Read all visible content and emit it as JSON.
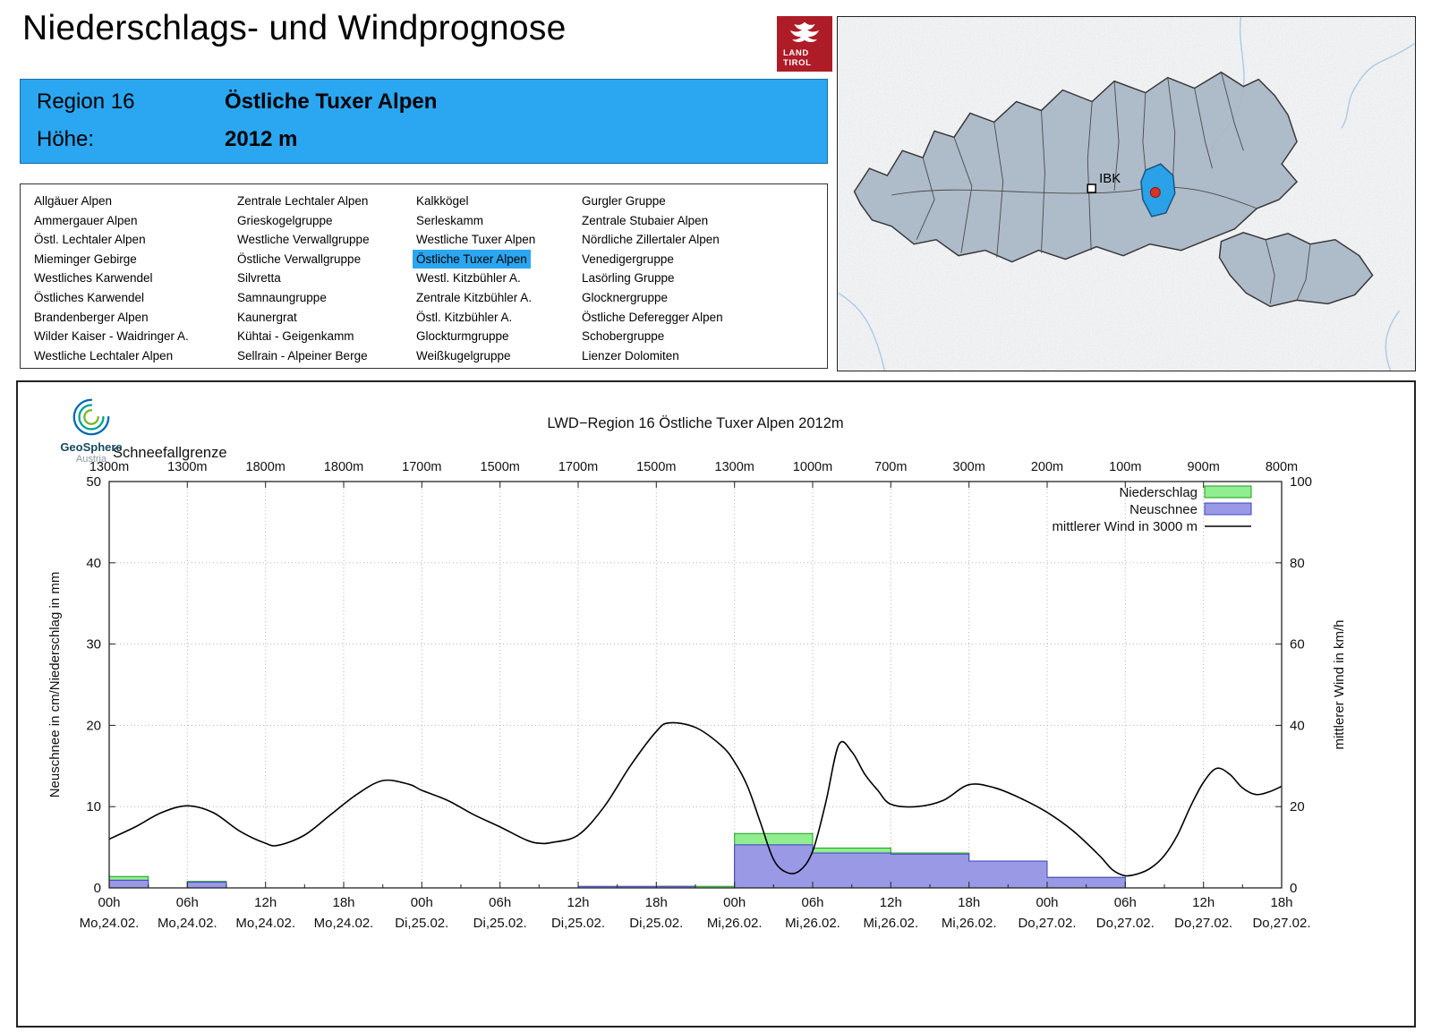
{
  "header": {
    "title": "Niederschlags- und Windprognose",
    "logo_line1": "LAND",
    "logo_line2": "TIROL"
  },
  "region_info": {
    "region_label": "Region 16",
    "region_name": "Östliche Tuxer Alpen",
    "altitude_label": "Höhe:",
    "altitude_value": "2012 m"
  },
  "region_list": {
    "selected": "Östliche Tuxer Alpen",
    "columns": [
      [
        "Allgäuer Alpen",
        "Ammergauer Alpen",
        "Östl. Lechtaler Alpen",
        "Mieminger Gebirge",
        "Westliches Karwendel",
        "Östliches Karwendel",
        "Brandenberger Alpen",
        "Wilder Kaiser - Waidringer A.",
        "Westliche Lechtaler Alpen"
      ],
      [
        "Zentrale Lechtaler Alpen",
        "Grieskogelgruppe",
        "Westliche Verwallgruppe",
        "Östliche Verwallgruppe",
        "Silvretta",
        "Samnaungruppe",
        "Kaunergrat",
        "Kühtai - Geigenkamm",
        "Sellrain - Alpeiner Berge"
      ],
      [
        "Kalkkögel",
        "Serleskamm",
        "Westliche Tuxer Alpen",
        "Östliche Tuxer Alpen",
        "Westl. Kitzbühler A.",
        "Zentrale Kitzbühler A.",
        "Östl. Kitzbühler A.",
        "Glockturmgruppe",
        "Weißkugelgruppe"
      ],
      [
        "Gurgler Gruppe",
        "Zentrale Stubaier Alpen",
        "Nördliche Zillertaler Alpen",
        "Venedigergruppe",
        "Lasörling Gruppe",
        "Glocknergruppe",
        "Östliche Deferegger Alpen",
        "Schobergruppe",
        "Lienzer Dolomiten"
      ]
    ]
  },
  "map": {
    "city_label": "IBK"
  },
  "geosphere": {
    "name": "GeoSphere",
    "sub": "Austria"
  },
  "colors": {
    "accent_blue": "#2ba6f0",
    "logo_red": "#ae1c28",
    "map_highlight": "#2ba2e8",
    "bar_precip": "#90ee90",
    "bar_precip_border": "#1e9e1e",
    "bar_snow": "#9999e6",
    "bar_snow_border": "#4040c0",
    "wind_line": "#000000"
  },
  "chart_data": {
    "type": "composite",
    "title": "LWD−Region 16 Östliche Tuxer Alpen 2012m",
    "snowline_label": "Schneefallgrenze",
    "snowline_values": [
      "1300m",
      "1300m",
      "1800m",
      "1800m",
      "1700m",
      "1500m",
      "1700m",
      "1500m",
      "1300m",
      "1000m",
      "700m",
      "300m",
      "200m",
      "100m",
      "900m",
      "800m"
    ],
    "ylabel_left": "Neuschnee in cm/Niederschlag in mm",
    "ylabel_right": "mittlerer Wind in km/h",
    "ylim_left": [
      0,
      50
    ],
    "ylim_right": [
      0,
      100
    ],
    "yticks_left": [
      0,
      10,
      20,
      30,
      40,
      50
    ],
    "yticks_right": [
      0,
      20,
      40,
      60,
      80,
      100
    ],
    "x_hours_total": 90,
    "x_ticks": [
      {
        "hour": "00h",
        "date": "Mo,24.02."
      },
      {
        "hour": "06h",
        "date": "Mo,24.02."
      },
      {
        "hour": "12h",
        "date": "Mo,24.02."
      },
      {
        "hour": "18h",
        "date": "Mo,24.02."
      },
      {
        "hour": "00h",
        "date": "Di,25.02."
      },
      {
        "hour": "06h",
        "date": "Di,25.02."
      },
      {
        "hour": "12h",
        "date": "Di,25.02."
      },
      {
        "hour": "18h",
        "date": "Di,25.02."
      },
      {
        "hour": "00h",
        "date": "Mi,26.02."
      },
      {
        "hour": "06h",
        "date": "Mi,26.02."
      },
      {
        "hour": "12h",
        "date": "Mi,26.02."
      },
      {
        "hour": "18h",
        "date": "Mi,26.02."
      },
      {
        "hour": "00h",
        "date": "Do,27.02."
      },
      {
        "hour": "06h",
        "date": "Do,27.02."
      },
      {
        "hour": "12h",
        "date": "Do,27.02."
      },
      {
        "hour": "18h",
        "date": "Do,27.02."
      }
    ],
    "legend": [
      {
        "label": "Niederschlag",
        "type": "bar",
        "color": "#90ee90",
        "border": "#1e9e1e"
      },
      {
        "label": "Neuschnee",
        "type": "bar",
        "color": "#9999e6",
        "border": "#4040c0"
      },
      {
        "label": "mittlerer Wind in 3000 m",
        "type": "line",
        "color": "#000000"
      }
    ],
    "slot_hours": 3,
    "series": {
      "niederschlag_mm": [
        1.4,
        0,
        0.8,
        0,
        0,
        0,
        0,
        0,
        0,
        0,
        0,
        0,
        0,
        0,
        0.2,
        0.2,
        6.7,
        6.7,
        4.9,
        4.9,
        4.3,
        4.3,
        3.3,
        3.3,
        1.3,
        1.3,
        0,
        0,
        0,
        0
      ],
      "neuschnee_cm": [
        0.95,
        0,
        0.7,
        0,
        0,
        0,
        0,
        0,
        0,
        0,
        0,
        0,
        0.2,
        0.2,
        0.2,
        0,
        5.3,
        5.3,
        4.3,
        4.3,
        4.15,
        4.15,
        3.3,
        3.3,
        1.3,
        1.3,
        0,
        0,
        0,
        0
      ],
      "wind_kmh": [
        [
          0,
          12
        ],
        [
          2,
          15
        ],
        [
          4,
          18.5
        ],
        [
          6,
          20.2
        ],
        [
          8,
          18.5
        ],
        [
          10,
          14
        ],
        [
          12,
          11
        ],
        [
          13,
          10.5
        ],
        [
          15,
          13
        ],
        [
          17,
          18
        ],
        [
          19,
          23
        ],
        [
          21,
          26.4
        ],
        [
          23,
          25.5
        ],
        [
          24,
          24
        ],
        [
          26,
          21.5
        ],
        [
          28,
          18
        ],
        [
          30,
          15
        ],
        [
          32,
          11.8
        ],
        [
          33,
          11
        ],
        [
          34,
          11.2
        ],
        [
          36,
          13
        ],
        [
          38,
          20
        ],
        [
          40,
          30
        ],
        [
          42,
          38.5
        ],
        [
          43,
          40.6
        ],
        [
          45,
          39.5
        ],
        [
          47,
          35
        ],
        [
          48,
          31
        ],
        [
          49,
          25
        ],
        [
          50,
          16
        ],
        [
          51,
          7
        ],
        [
          52,
          3.8
        ],
        [
          53,
          4.2
        ],
        [
          54,
          9
        ],
        [
          55,
          21
        ],
        [
          56,
          35.2
        ],
        [
          57,
          33.5
        ],
        [
          58,
          28
        ],
        [
          59,
          24
        ],
        [
          60,
          20.6
        ],
        [
          62,
          20
        ],
        [
          64,
          21.5
        ],
        [
          66,
          25.4
        ],
        [
          68,
          24.6
        ],
        [
          70,
          22
        ],
        [
          72,
          18.6
        ],
        [
          74,
          14
        ],
        [
          76,
          8
        ],
        [
          77,
          4.5
        ],
        [
          78,
          3
        ],
        [
          79,
          3.5
        ],
        [
          80,
          5
        ],
        [
          81,
          8
        ],
        [
          82,
          13
        ],
        [
          83,
          20
        ],
        [
          84,
          26
        ],
        [
          85,
          29.4
        ],
        [
          86,
          28
        ],
        [
          87,
          24.6
        ],
        [
          88,
          23
        ],
        [
          89,
          23.6
        ],
        [
          90,
          25
        ]
      ]
    }
  }
}
